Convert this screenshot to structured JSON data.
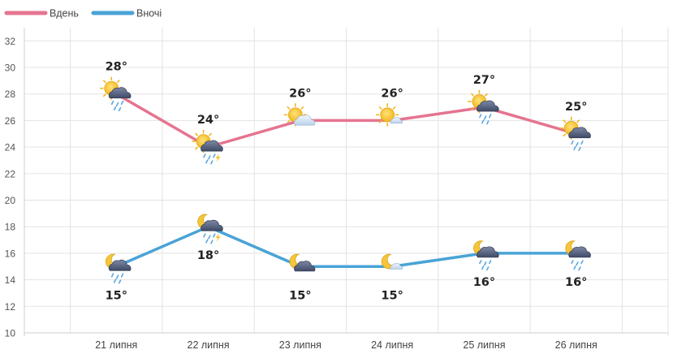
{
  "chart_data": {
    "type": "line",
    "categories": [
      "21 липня",
      "22 липня",
      "23 липня",
      "24 липня",
      "25 липня",
      "26 липня"
    ],
    "series": [
      {
        "name": "Вдень",
        "color": "#e57490",
        "values": [
          28,
          24,
          26,
          26,
          27,
          25
        ],
        "labels": [
          "28°",
          "24°",
          "26°",
          "26°",
          "27°",
          "25°"
        ],
        "icons": [
          "sun-cloud-rain-icon",
          "sun-cloud-rain-thunder-icon",
          "sun-cloud-icon",
          "sun-light-cloud-icon",
          "sun-cloud-rain-icon",
          "sun-cloud-rain-icon"
        ]
      },
      {
        "name": "Вночі",
        "color": "#4aa3d6",
        "values": [
          15,
          18,
          15,
          15,
          16,
          16
        ],
        "labels": [
          "15°",
          "18°",
          "15°",
          "15°",
          "16°",
          "16°"
        ],
        "icons": [
          "moon-cloud-rain-icon",
          "moon-cloud-rain-thunder-icon",
          "moon-cloud-icon",
          "moon-light-cloud-icon",
          "moon-cloud-rain-icon",
          "moon-cloud-rain-icon"
        ]
      }
    ],
    "yticks": [
      10,
      12,
      14,
      16,
      18,
      20,
      22,
      24,
      26,
      28,
      30,
      32
    ],
    "ylim": [
      10,
      33
    ],
    "grid": true,
    "legend": "top-left"
  }
}
